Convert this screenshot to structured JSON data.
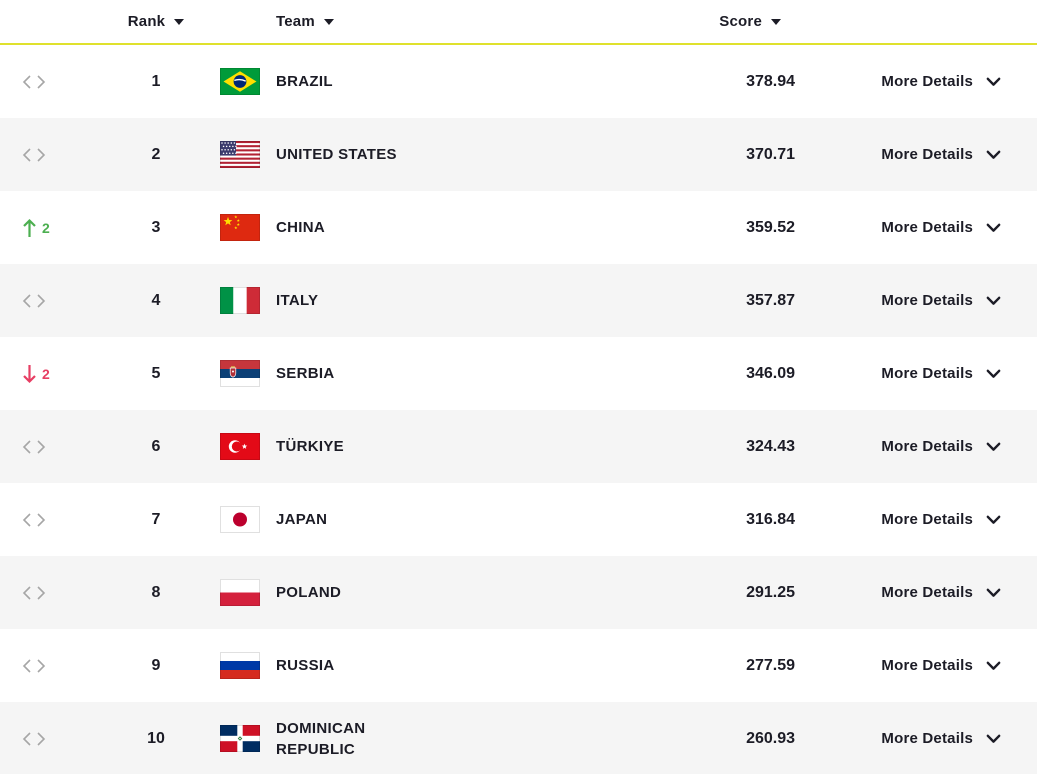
{
  "table": {
    "headers": {
      "rank": "Rank",
      "team": "Team",
      "score": "Score"
    },
    "more_details_label": "More Details",
    "rows": [
      {
        "rank": 1,
        "team": "BRAZIL",
        "country": "brazil",
        "code": "BRA",
        "score": "378.94",
        "change": "none"
      },
      {
        "rank": 2,
        "team": "UNITED STATES",
        "country": "united-states",
        "code": "USA",
        "score": "370.71",
        "change": "none"
      },
      {
        "rank": 3,
        "team": "CHINA",
        "country": "china",
        "code": "CHN",
        "score": "359.52",
        "change": "up",
        "change_amount": 2
      },
      {
        "rank": 4,
        "team": "ITALY",
        "country": "italy",
        "code": "ITA",
        "score": "357.87",
        "change": "none"
      },
      {
        "rank": 5,
        "team": "SERBIA",
        "country": "serbia",
        "code": "SRB",
        "score": "346.09",
        "change": "down",
        "change_amount": 2
      },
      {
        "rank": 6,
        "team": "TÜRKIYE",
        "country": "turkiye",
        "code": "TUR",
        "score": "324.43",
        "change": "none"
      },
      {
        "rank": 7,
        "team": "JAPAN",
        "country": "japan",
        "code": "JPN",
        "score": "316.84",
        "change": "none"
      },
      {
        "rank": 8,
        "team": "POLAND",
        "country": "poland",
        "code": "POL",
        "score": "291.25",
        "change": "none"
      },
      {
        "rank": 9,
        "team": "RUSSIA",
        "country": "russia",
        "code": "RUS",
        "score": "277.59",
        "change": "none"
      },
      {
        "rank": 10,
        "team": "DOMINICAN REPUBLIC",
        "country": "dominican-republic",
        "code": "DOM",
        "score": "260.93",
        "change": "none"
      }
    ],
    "icons": {
      "no_change": "no-change-icon",
      "rank_up": "rank-up-icon",
      "rank_down": "rank-down-icon",
      "sort": "sort-desc-icon",
      "more_details": "chevron-down-icon"
    },
    "colors": {
      "accent_line": "#dfe12d",
      "rank_up": "#4caf50",
      "rank_down": "#e73e63",
      "alt_row": "#f5f5f5",
      "text": "#1c1c26"
    }
  }
}
